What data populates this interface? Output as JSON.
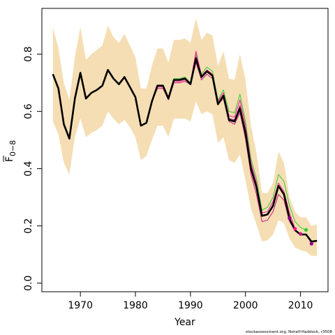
{
  "chart_data": {
    "type": "line",
    "xlabel": "Year",
    "ylabel_main": "F",
    "ylabel_sub": "0−8",
    "credit": "stockassessment.org, Nshelf-Haddock, r3508",
    "xlim": [
      1963,
      2015
    ],
    "ylim": [
      -0.03,
      0.96
    ],
    "x_ticks": [
      1970,
      1980,
      1990,
      2000,
      2010
    ],
    "y_ticks": [
      0.0,
      0.2,
      0.4,
      0.6,
      0.8
    ],
    "y_tick_labels": [
      "0.0",
      "0.2",
      "0.4",
      "0.6",
      "0.8"
    ],
    "colors": {
      "band": "#f5deb3",
      "main": "#000000",
      "retro": [
        "#32cd32",
        "#c71585",
        "#ff1493",
        "#8b008b",
        "#e6194b"
      ]
    },
    "band": {
      "x": [
        1965,
        1966,
        1967,
        1968,
        1969,
        1970,
        1971,
        1972,
        1973,
        1974,
        1975,
        1976,
        1977,
        1978,
        1979,
        1980,
        1981,
        1982,
        1983,
        1984,
        1985,
        1986,
        1987,
        1988,
        1989,
        1990,
        1991,
        1992,
        1993,
        1994,
        1995,
        1996,
        1997,
        1998,
        1999,
        2000,
        2001,
        2002,
        2003,
        2004,
        2005,
        2006,
        2007,
        2008,
        2009,
        2010,
        2011,
        2012,
        2013
      ],
      "upper": [
        0.895,
        0.82,
        0.7,
        0.64,
        0.79,
        0.895,
        0.78,
        0.8,
        0.815,
        0.83,
        0.9,
        0.86,
        0.84,
        0.87,
        0.83,
        0.79,
        0.68,
        0.68,
        0.76,
        0.82,
        0.82,
        0.77,
        0.85,
        0.85,
        0.855,
        0.84,
        0.925,
        0.85,
        0.875,
        0.865,
        0.76,
        0.81,
        0.715,
        0.71,
        0.8,
        0.71,
        0.55,
        0.455,
        0.315,
        0.315,
        0.35,
        0.46,
        0.42,
        0.3,
        0.25,
        0.23,
        0.23,
        0.2,
        0.205
      ],
      "lower": [
        0.565,
        0.52,
        0.42,
        0.38,
        0.51,
        0.575,
        0.51,
        0.525,
        0.535,
        0.55,
        0.6,
        0.575,
        0.555,
        0.57,
        0.545,
        0.51,
        0.43,
        0.445,
        0.5,
        0.55,
        0.55,
        0.51,
        0.575,
        0.575,
        0.575,
        0.565,
        0.635,
        0.59,
        0.6,
        0.59,
        0.49,
        0.51,
        0.43,
        0.42,
        0.45,
        0.36,
        0.26,
        0.205,
        0.145,
        0.15,
        0.17,
        0.22,
        0.21,
        0.155,
        0.125,
        0.115,
        0.11,
        0.095,
        0.095
      ]
    },
    "series": [
      {
        "x": [
          1965,
          1966,
          1967,
          1968,
          1969,
          1970,
          1971,
          1972,
          1973,
          1974,
          1975,
          1976,
          1977,
          1978,
          1979,
          1980,
          1981,
          1982,
          1983,
          1984,
          1985,
          1986,
          1987,
          1988,
          1989,
          1990,
          1991,
          1992,
          1993,
          1994,
          1995,
          1996,
          1997,
          1998,
          1999,
          2000,
          2001,
          2002,
          2003,
          2004,
          2005,
          2006,
          2007,
          2008,
          2009,
          2010,
          2011,
          2012,
          2013
        ],
        "values": [
          0.73,
          0.68,
          0.555,
          0.505,
          0.645,
          0.735,
          0.645,
          0.665,
          0.675,
          0.69,
          0.745,
          0.715,
          0.695,
          0.72,
          0.685,
          0.65,
          0.55,
          0.56,
          0.635,
          0.69,
          0.69,
          0.645,
          0.71,
          0.71,
          0.715,
          0.695,
          0.785,
          0.72,
          0.74,
          0.725,
          0.625,
          0.655,
          0.57,
          0.565,
          0.61,
          0.525,
          0.4,
          0.335,
          0.235,
          0.24,
          0.27,
          0.34,
          0.31,
          0.225,
          0.185,
          0.17,
          0.17,
          0.145,
          0.148
        ]
      },
      {
        "x": [
          1965,
          1966,
          1967,
          1968,
          1969,
          1970,
          1971,
          1972,
          1973,
          1974,
          1975,
          1976,
          1977,
          1978,
          1979,
          1980,
          1981,
          1982,
          1983,
          1984,
          1985,
          1986,
          1987,
          1988,
          1989,
          1990,
          1991,
          1992,
          1993,
          1994,
          1995,
          1996,
          1997,
          1998,
          1999,
          2000,
          2001,
          2002,
          2003,
          2004,
          2005,
          2006,
          2007,
          2008,
          2009,
          2010,
          2011
        ],
        "values": [
          0.73,
          0.68,
          0.555,
          0.505,
          0.645,
          0.735,
          0.645,
          0.665,
          0.675,
          0.69,
          0.745,
          0.715,
          0.695,
          0.72,
          0.685,
          0.65,
          0.55,
          0.56,
          0.635,
          0.69,
          0.69,
          0.645,
          0.715,
          0.715,
          0.72,
          0.7,
          0.8,
          0.73,
          0.755,
          0.74,
          0.64,
          0.675,
          0.6,
          0.595,
          0.66,
          0.565,
          0.435,
          0.365,
          0.255,
          0.265,
          0.3,
          0.38,
          0.355,
          0.27,
          0.215,
          0.195,
          0.185
        ]
      },
      {
        "x": [
          1965,
          1966,
          1967,
          1968,
          1969,
          1970,
          1971,
          1972,
          1973,
          1974,
          1975,
          1976,
          1977,
          1978,
          1979,
          1980,
          1981,
          1982,
          1983,
          1984,
          1985,
          1986,
          1987,
          1988,
          1989,
          1990,
          1991,
          1992,
          1993,
          1994,
          1995,
          1996,
          1997,
          1998,
          1999,
          2000,
          2001,
          2002,
          2003,
          2004,
          2005,
          2006,
          2007,
          2008,
          2009,
          2010
        ],
        "values": [
          0.73,
          0.68,
          0.555,
          0.505,
          0.645,
          0.735,
          0.645,
          0.665,
          0.675,
          0.69,
          0.745,
          0.715,
          0.695,
          0.72,
          0.685,
          0.65,
          0.55,
          0.56,
          0.635,
          0.68,
          0.68,
          0.64,
          0.7,
          0.7,
          0.705,
          0.695,
          0.77,
          0.71,
          0.73,
          0.715,
          0.625,
          0.645,
          0.565,
          0.555,
          0.595,
          0.505,
          0.38,
          0.31,
          0.215,
          0.22,
          0.25,
          0.31,
          0.29,
          0.215,
          0.185,
          0.17
        ]
      },
      {
        "x": [
          1965,
          1966,
          1967,
          1968,
          1969,
          1970,
          1971,
          1972,
          1973,
          1974,
          1975,
          1976,
          1977,
          1978,
          1979,
          1980,
          1981,
          1982,
          1983,
          1984,
          1985,
          1986,
          1987,
          1988,
          1989,
          1990,
          1991,
          1992,
          1993,
          1994,
          1995,
          1996,
          1997,
          1998,
          1999,
          2000,
          2001,
          2002,
          2003,
          2004,
          2005,
          2006,
          2007,
          2008,
          2009
        ],
        "values": [
          0.73,
          0.68,
          0.555,
          0.505,
          0.645,
          0.735,
          0.645,
          0.665,
          0.675,
          0.69,
          0.745,
          0.715,
          0.695,
          0.72,
          0.685,
          0.65,
          0.55,
          0.56,
          0.635,
          0.685,
          0.685,
          0.645,
          0.705,
          0.705,
          0.71,
          0.7,
          0.81,
          0.725,
          0.745,
          0.73,
          0.635,
          0.665,
          0.585,
          0.58,
          0.64,
          0.55,
          0.42,
          0.35,
          0.245,
          0.25,
          0.285,
          0.35,
          0.32,
          0.245,
          0.19
        ]
      },
      {
        "x": [
          1965,
          1966,
          1967,
          1968,
          1969,
          1970,
          1971,
          1972,
          1973,
          1974,
          1975,
          1976,
          1977,
          1978,
          1979,
          1980,
          1981,
          1982,
          1983,
          1984,
          1985,
          1986,
          1987,
          1988,
          1989,
          1990,
          1991,
          1992,
          1993,
          1994,
          1995,
          1996,
          1997,
          1998,
          1999,
          2000,
          2001,
          2002,
          2003,
          2004,
          2005,
          2006,
          2007,
          2008
        ],
        "values": [
          0.73,
          0.68,
          0.555,
          0.505,
          0.645,
          0.735,
          0.645,
          0.665,
          0.675,
          0.69,
          0.745,
          0.715,
          0.695,
          0.72,
          0.685,
          0.65,
          0.55,
          0.56,
          0.635,
          0.69,
          0.69,
          0.645,
          0.71,
          0.71,
          0.715,
          0.695,
          0.79,
          0.72,
          0.74,
          0.725,
          0.625,
          0.655,
          0.575,
          0.57,
          0.62,
          0.535,
          0.41,
          0.34,
          0.235,
          0.24,
          0.27,
          0.335,
          0.315,
          0.23
        ]
      },
      {
        "x": [
          1965,
          1966,
          1967,
          1968,
          1969,
          1970,
          1971,
          1972,
          1973,
          1974,
          1975,
          1976,
          1977,
          1978,
          1979,
          1980,
          1981,
          1982,
          1983,
          1984,
          1985,
          1986,
          1987,
          1988,
          1989,
          1990,
          1991,
          1992,
          1993,
          1994,
          1995,
          1996,
          1997,
          1998,
          1999,
          2000,
          2001,
          2002,
          2003,
          2004,
          2005,
          2006,
          2007,
          2008,
          2009,
          2010,
          2011,
          2012
        ],
        "values": [
          0.73,
          0.68,
          0.555,
          0.505,
          0.645,
          0.735,
          0.645,
          0.665,
          0.675,
          0.69,
          0.745,
          0.715,
          0.695,
          0.72,
          0.685,
          0.65,
          0.55,
          0.56,
          0.635,
          0.69,
          0.69,
          0.645,
          0.71,
          0.71,
          0.715,
          0.695,
          0.785,
          0.72,
          0.74,
          0.725,
          0.625,
          0.655,
          0.57,
          0.565,
          0.61,
          0.525,
          0.4,
          0.335,
          0.235,
          0.24,
          0.27,
          0.34,
          0.31,
          0.225,
          0.185,
          0.17,
          0.17,
          0.138
        ]
      }
    ],
    "terminal_points": [
      {
        "x": 2008,
        "y": 0.227
      },
      {
        "x": 2009,
        "y": 0.19
      },
      {
        "x": 2010,
        "y": 0.172
      },
      {
        "x": 2011,
        "y": 0.186
      },
      {
        "x": 2012,
        "y": 0.138
      }
    ]
  }
}
